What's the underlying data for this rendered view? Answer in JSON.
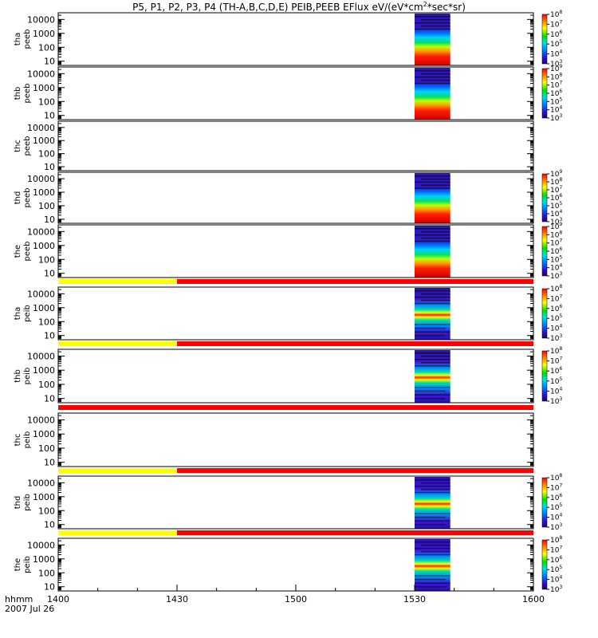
{
  "title": {
    "prefix": "P5, P1, P2, P3, P4 (TH-A,B,C,D,E) PEIB,PEEB EFlux eV/(eV*cm",
    "sup": "2",
    "suffix": "*sec*sr)"
  },
  "x_axis": {
    "prefix": "hhmm",
    "date": "2007 Jul 26",
    "ticks": [
      "1400",
      "1430",
      "1500",
      "1530",
      "1600"
    ]
  },
  "colors": {
    "bar_yellow": "#ffff00",
    "bar_red": "#ff0000",
    "spec_dark": "#3a18c8"
  },
  "chart_data": {
    "type": "heatmap",
    "x_range_hhmm": [
      "1400",
      "1600"
    ],
    "y_scale": "log",
    "y_range": [
      5,
      30000
    ],
    "y_ticks": [
      "10",
      "100",
      "1000",
      "10000"
    ],
    "data_interval_hhmm": [
      "1530",
      "1539"
    ],
    "panels": [
      {
        "label1": "tha",
        "label2": "peeb",
        "has_data": true,
        "kind": "electron",
        "cbar": {
          "min_exp": 3,
          "max_exp": 8
        },
        "cbar_labels": [
          "10",
          "10",
          "10",
          "10",
          "10",
          "10"
        ],
        "cbar_exps": [
          "8",
          "7",
          "6",
          "5",
          "4",
          "3"
        ]
      },
      {
        "label1": "thb",
        "label2": "peeb",
        "has_data": true,
        "kind": "electron",
        "cbar": {
          "min_exp": 3,
          "max_exp": 9
        },
        "cbar_labels": [
          "10",
          "10",
          "10",
          "10",
          "10",
          "10",
          "10"
        ],
        "cbar_exps": [
          "9",
          "8",
          "7",
          "6",
          "5",
          "4",
          "3"
        ]
      },
      {
        "label1": "thc",
        "label2": "peeb",
        "has_data": false,
        "kind": "none",
        "cbar": null,
        "cbar_labels": [],
        "cbar_exps": []
      },
      {
        "label1": "thd",
        "label2": "peeb",
        "has_data": true,
        "kind": "electron",
        "cbar": {
          "min_exp": 3,
          "max_exp": 9
        },
        "cbar_labels": [
          "10",
          "10",
          "10",
          "10",
          "10",
          "10",
          "10"
        ],
        "cbar_exps": [
          "9",
          "8",
          "7",
          "6",
          "5",
          "4",
          "3"
        ]
      },
      {
        "label1": "the",
        "label2": "peeb",
        "has_data": true,
        "kind": "electron",
        "cbar": {
          "min_exp": 3,
          "max_exp": 9
        },
        "cbar_labels": [
          "10",
          "10",
          "10",
          "10",
          "10",
          "10",
          "10"
        ],
        "cbar_exps": [
          "9",
          "8",
          "7",
          "6",
          "5",
          "4",
          "3"
        ]
      },
      {
        "label1": "tha",
        "label2": "peib",
        "has_data": true,
        "kind": "ion",
        "bar": {
          "yellow_until_hhmm": "1430"
        },
        "cbar": {
          "min_exp": 3,
          "max_exp": 8
        },
        "cbar_labels": [
          "10",
          "10",
          "10",
          "10",
          "10",
          "10"
        ],
        "cbar_exps": [
          "8",
          "7",
          "6",
          "5",
          "4",
          "3"
        ]
      },
      {
        "label1": "thb",
        "label2": "peib",
        "has_data": true,
        "kind": "ion",
        "bar": {
          "yellow_until_hhmm": "1430"
        },
        "cbar": {
          "min_exp": 3,
          "max_exp": 8
        },
        "cbar_labels": [
          "10",
          "10",
          "10",
          "10",
          "10",
          "10"
        ],
        "cbar_exps": [
          "8",
          "7",
          "6",
          "5",
          "4",
          "3"
        ]
      },
      {
        "label1": "thc",
        "label2": "peib",
        "has_data": false,
        "kind": "none",
        "bar": {
          "yellow_until_hhmm": null
        },
        "cbar": null,
        "cbar_labels": [],
        "cbar_exps": []
      },
      {
        "label1": "thd",
        "label2": "peib",
        "has_data": true,
        "kind": "ion",
        "bar": {
          "yellow_until_hhmm": "1430"
        },
        "cbar": {
          "min_exp": 3,
          "max_exp": 8
        },
        "cbar_labels": [
          "10",
          "10",
          "10",
          "10",
          "10",
          "10"
        ],
        "cbar_exps": [
          "8",
          "7",
          "6",
          "5",
          "4",
          "3"
        ]
      },
      {
        "label1": "the",
        "label2": "peib",
        "has_data": true,
        "kind": "ion",
        "bar": {
          "yellow_until_hhmm": "1430"
        },
        "cbar": {
          "min_exp": 3,
          "max_exp": 8
        },
        "cbar_labels": [
          "10",
          "10",
          "10",
          "10",
          "10",
          "10"
        ],
        "cbar_exps": [
          "8",
          "7",
          "6",
          "5",
          "4",
          "3"
        ]
      }
    ]
  }
}
